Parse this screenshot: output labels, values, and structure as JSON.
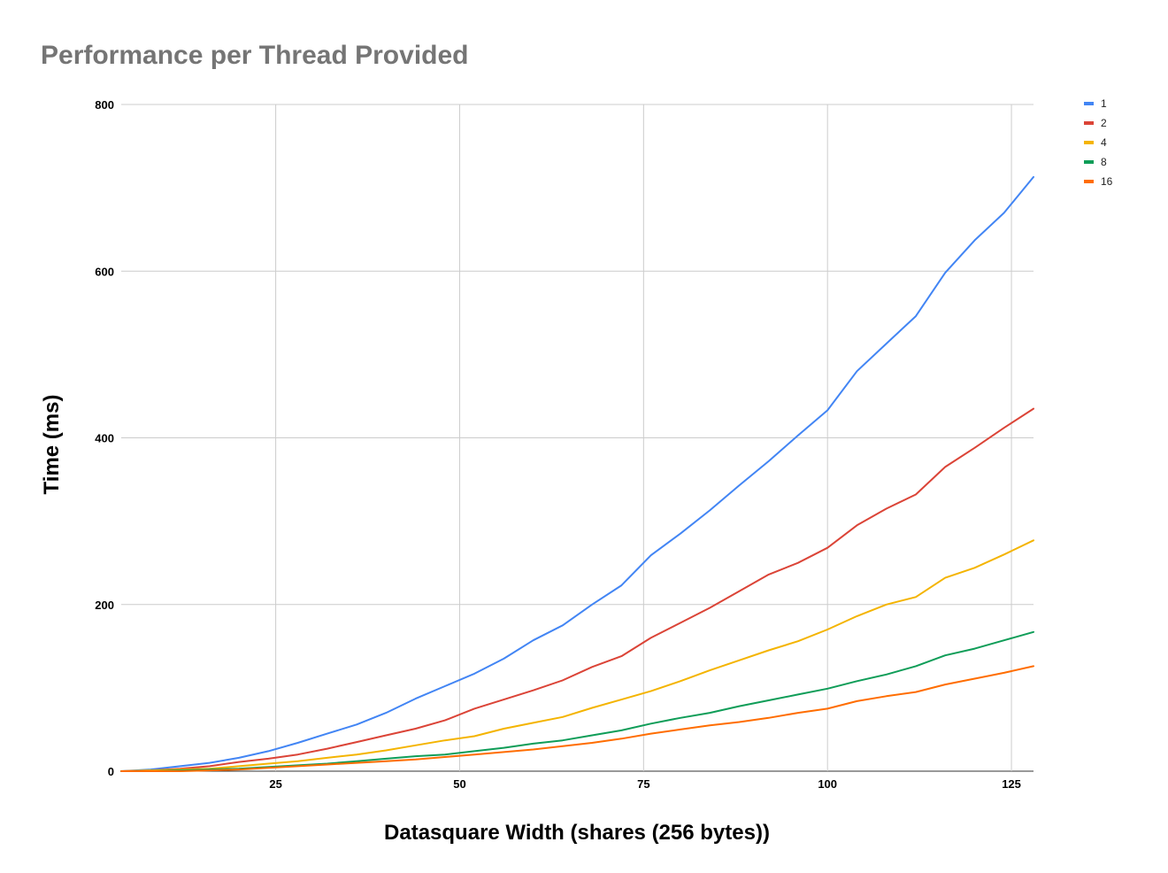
{
  "chart_data": {
    "type": "line",
    "title": "Performance per Thread Provided",
    "xlabel": "Datasquare Width (shares (256 bytes))",
    "ylabel": "Time (ms)",
    "xlim": [
      4,
      128
    ],
    "ylim": [
      0,
      800
    ],
    "x_ticks": [
      25,
      50,
      75,
      100,
      125
    ],
    "y_ticks": [
      0,
      200,
      400,
      600,
      800
    ],
    "grid": true,
    "legend_position": "right",
    "x": [
      4,
      8,
      12,
      16,
      20,
      24,
      28,
      32,
      36,
      40,
      44,
      48,
      52,
      56,
      60,
      64,
      68,
      72,
      76,
      80,
      84,
      88,
      92,
      96,
      100,
      104,
      108,
      112,
      116,
      120,
      124,
      128
    ],
    "series": [
      {
        "name": "1",
        "color": "#4285f4",
        "values": [
          0,
          2,
          6,
          10,
          16,
          24,
          34,
          45,
          56,
          70,
          87,
          102,
          117,
          135,
          157,
          175,
          200,
          223,
          259,
          285,
          313,
          343,
          372,
          403,
          433,
          480,
          513,
          546,
          598,
          637,
          670,
          713
        ]
      },
      {
        "name": "2",
        "color": "#db4437",
        "values": [
          0,
          1,
          3,
          6,
          11,
          15,
          20,
          27,
          35,
          43,
          51,
          61,
          75,
          86,
          97,
          109,
          125,
          138,
          160,
          178,
          196,
          216,
          236,
          250,
          268,
          295,
          315,
          332,
          365,
          388,
          412,
          435
        ]
      },
      {
        "name": "4",
        "color": "#f4b400",
        "values": [
          0,
          1,
          2,
          3,
          6,
          9,
          12,
          16,
          20,
          25,
          31,
          37,
          42,
          51,
          58,
          65,
          76,
          86,
          96,
          108,
          121,
          133,
          145,
          156,
          170,
          186,
          200,
          209,
          232,
          244,
          260,
          277
        ]
      },
      {
        "name": "8",
        "color": "#0f9d58",
        "values": [
          0,
          0,
          1,
          2,
          3,
          5,
          7,
          9,
          12,
          15,
          18,
          20,
          24,
          28,
          33,
          37,
          43,
          49,
          57,
          64,
          70,
          78,
          85,
          92,
          99,
          108,
          116,
          126,
          139,
          147,
          157,
          167
        ]
      },
      {
        "name": "16",
        "color": "#ff6d00",
        "values": [
          0,
          0,
          0,
          1,
          2,
          4,
          6,
          8,
          10,
          12,
          14,
          17,
          20,
          23,
          26,
          30,
          34,
          39,
          45,
          50,
          55,
          59,
          64,
          70,
          75,
          84,
          90,
          95,
          104,
          111,
          118,
          126
        ]
      }
    ]
  }
}
